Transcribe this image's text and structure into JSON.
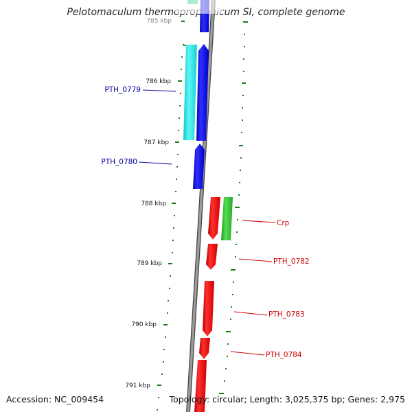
{
  "title": "Pelotomaculum thermopropionicum SI, complete genome",
  "footer": {
    "accession": "Accession: NC_009454",
    "summary": "Topology: circular; Length: 3,025,375 bp; Genes: 2,975"
  },
  "scale_labels": [
    "785 kbp",
    "786 kbp",
    "787 kbp",
    "788 kbp",
    "789 kbp",
    "790 kbp",
    "791 kbp"
  ],
  "gene_labels_left": [
    "PTH_0779",
    "PTH_0780"
  ],
  "gene_labels_right": [
    "Crp",
    "PTH_0782",
    "PTH_0783",
    "PTH_0784"
  ],
  "colors": {
    "backbone": "#8a8a8a",
    "forward_strand": "#0000ee",
    "reverse_strand": "#ee0000",
    "cyan_feature": "#22e6e6",
    "green_feature": "#33bb33",
    "tick": "#006600",
    "left_label": "#000099",
    "right_label": "#cc0000"
  }
}
